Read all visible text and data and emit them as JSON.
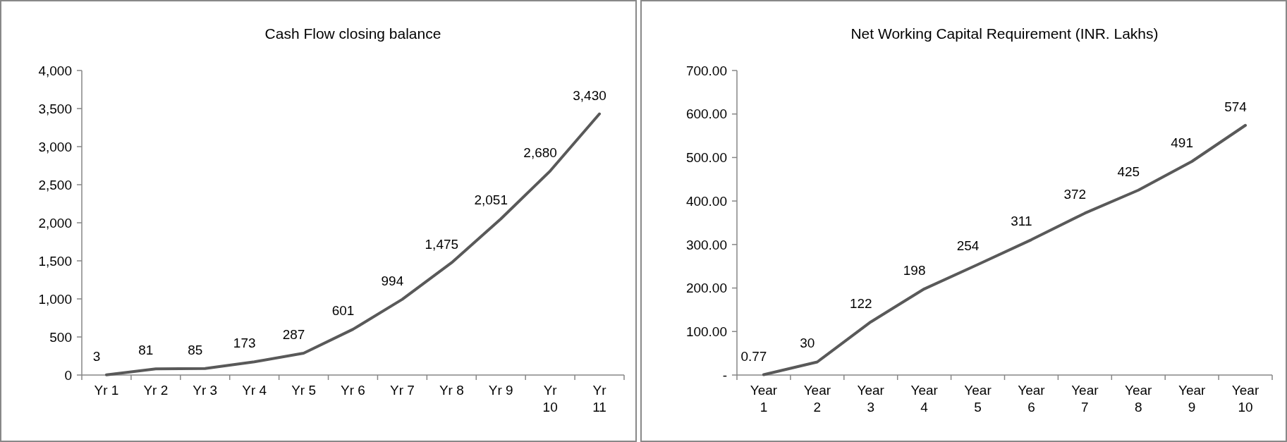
{
  "chart_data": [
    {
      "type": "line",
      "title": "Cash Flow closing balance",
      "categories": [
        "Yr 1",
        "Yr 2",
        "Yr 3",
        "Yr 4",
        "Yr 5",
        "Yr 6",
        "Yr 7",
        "Yr 8",
        "Yr 9",
        "Yr 10",
        "Yr 11"
      ],
      "series": [
        {
          "color": "#595959",
          "values": [
            3,
            81,
            85,
            173,
            287,
            601,
            994,
            1475,
            2051,
            2680,
            3430
          ],
          "value_labels": [
            "3",
            "81",
            "85",
            "173",
            "287",
            "601",
            "994",
            "1,475",
            "2,051",
            "2,680",
            "3,430"
          ]
        }
      ],
      "ylim": [
        0,
        4000
      ],
      "yticks": [
        0,
        {
          "value": 500,
          "label": "500"
        },
        {
          "value": 1000,
          "label": "1,000"
        },
        {
          "value": 1500,
          "label": "1,500"
        },
        {
          "value": 2000,
          "label": "2,000"
        },
        {
          "value": 2500,
          "label": "2,500"
        },
        {
          "value": 3000,
          "label": "3,000"
        },
        {
          "value": 3500,
          "label": "3,500"
        },
        {
          "value": 4000,
          "label": "4,000"
        }
      ],
      "grid": false,
      "marker": "none",
      "line_style": "solid"
    },
    {
      "type": "line",
      "title": "Net Working Capital Requirement (INR. Lakhs)",
      "categories": [
        "Year 1",
        "Year 2",
        "Year 3",
        "Year 4",
        "Year 5",
        "Year 6",
        "Year 7",
        "Year 8",
        "Year 9",
        "Year 10"
      ],
      "series": [
        {
          "color": "#595959",
          "values": [
            0.77,
            30,
            122,
            198,
            254,
            311,
            372,
            425,
            491,
            574
          ],
          "value_labels": [
            "0.77",
            "30",
            "122",
            "198",
            "254",
            "311",
            "372",
            "425",
            "491",
            "574"
          ]
        }
      ],
      "ylim": [
        0,
        700
      ],
      "yticks": [
        {
          "value": 0,
          "label": "-"
        },
        {
          "value": 100,
          "label": "100.00"
        },
        {
          "value": 200,
          "label": "200.00"
        },
        {
          "value": 300,
          "label": "300.00"
        },
        {
          "value": 400,
          "label": "400.00"
        },
        {
          "value": 500,
          "label": "500.00"
        },
        {
          "value": 600,
          "label": "600.00"
        },
        {
          "value": 700,
          "label": "700.00"
        }
      ],
      "grid": false,
      "marker": "none",
      "line_style": "solid"
    }
  ]
}
